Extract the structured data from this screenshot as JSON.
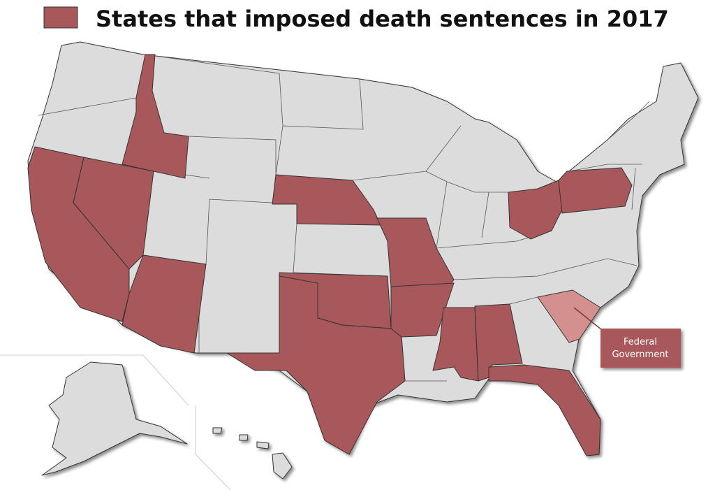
{
  "legend": {
    "label": "States that imposed death sentences in 2017",
    "color": "#a8585a"
  },
  "annotation": {
    "lines": [
      "Federal",
      "Government"
    ],
    "color": "#a8585a",
    "highlight_color": "#d4908e"
  },
  "base_color": "#dcdcdc"
}
